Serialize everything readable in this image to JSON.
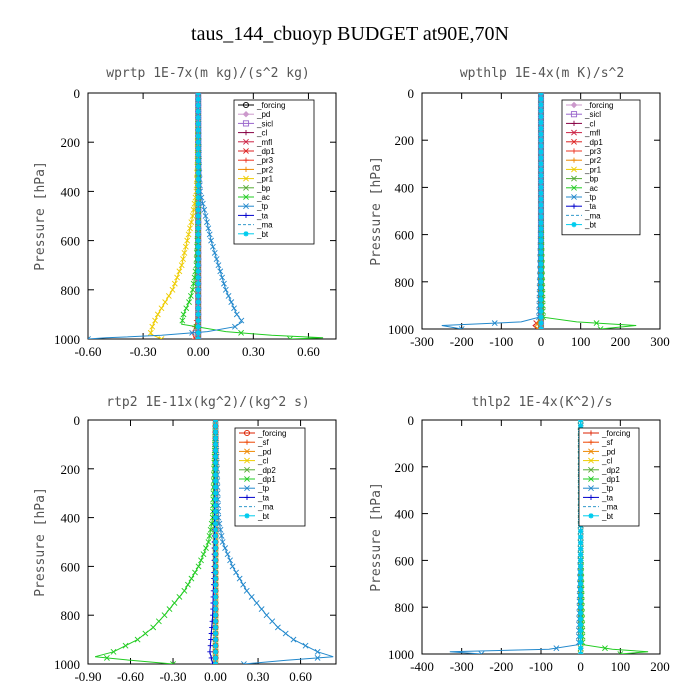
{
  "figure": {
    "title": "taus_144_cbuoyp  BUDGET at90E,70N"
  },
  "chart_data": [
    {
      "type": "line",
      "title": "wprtp  1E-7x(m kg)/(s^2 kg)",
      "ylabel": "Pressure [hPa]",
      "xlim": [
        -0.6,
        0.75
      ],
      "ylim": [
        1000,
        0
      ],
      "xticks": [
        "-0.60",
        "-0.30",
        "0.00",
        "0.30",
        "0.60"
      ],
      "yticks": [
        "0",
        "200",
        "400",
        "600",
        "800",
        "1000"
      ],
      "legend_position": "top-right",
      "series": [
        {
          "name": "_forcing",
          "color": "#000000",
          "marker": "circle",
          "dash": "",
          "y": [
            0,
            500,
            900,
            1000
          ],
          "x": [
            0,
            0,
            0,
            0
          ]
        },
        {
          "name": "_pd",
          "color": "#cc99cc",
          "marker": "diamond",
          "dash": "",
          "y": [
            0,
            500,
            900,
            1000
          ],
          "x": [
            0,
            0,
            0,
            0
          ]
        },
        {
          "name": "_sicl",
          "color": "#9966cc",
          "marker": "square",
          "dash": "",
          "y": [
            0,
            500,
            900,
            1000
          ],
          "x": [
            0,
            0,
            0,
            0
          ]
        },
        {
          "name": "_cl",
          "color": "#880044",
          "marker": "plus",
          "dash": "",
          "y": [
            0,
            500,
            900,
            1000
          ],
          "x": [
            0,
            0,
            0,
            0
          ]
        },
        {
          "name": "_mfl",
          "color": "#cc2244",
          "marker": "x",
          "dash": "",
          "y": [
            0,
            500,
            900,
            1000
          ],
          "x": [
            0,
            0,
            0,
            0
          ]
        },
        {
          "name": "_dp1",
          "color": "#dd2222",
          "marker": "x",
          "dash": "",
          "y": [
            0,
            500,
            900,
            1000
          ],
          "x": [
            0,
            0,
            0,
            0
          ]
        },
        {
          "name": "_pr3",
          "color": "#ee3322",
          "marker": "plus",
          "dash": "",
          "y": [
            0,
            500,
            900,
            980,
            1000
          ],
          "x": [
            0,
            0,
            0,
            -0.03,
            -0.02
          ]
        },
        {
          "name": "_pr2",
          "color": "#ee8800",
          "marker": "plus",
          "dash": "",
          "y": [
            0,
            500,
            900,
            1000
          ],
          "x": [
            0,
            0,
            0,
            0
          ]
        },
        {
          "name": "_pr1",
          "color": "#eecc00",
          "marker": "x",
          "dash": "",
          "y": [
            0,
            300,
            400,
            500,
            600,
            700,
            800,
            850,
            900,
            950,
            980,
            1000
          ],
          "x": [
            0,
            -0.005,
            -0.01,
            -0.03,
            -0.06,
            -0.09,
            -0.14,
            -0.18,
            -0.22,
            -0.25,
            -0.26,
            -0.2
          ]
        },
        {
          "name": "_bp",
          "color": "#55aa33",
          "marker": "x",
          "dash": "",
          "y": [
            0,
            500,
            900,
            1000
          ],
          "x": [
            0,
            0,
            0,
            0
          ]
        },
        {
          "name": "_ac",
          "color": "#22cc22",
          "marker": "x",
          "dash": "",
          "y": [
            0,
            500,
            700,
            800,
            850,
            900,
            940,
            970,
            985,
            995,
            1000
          ],
          "x": [
            0,
            0,
            -0.01,
            -0.03,
            -0.05,
            -0.08,
            -0.09,
            0.15,
            0.4,
            0.68,
            0.5
          ]
        },
        {
          "name": "_tp",
          "color": "#2288cc",
          "marker": "x",
          "dash": "",
          "y": [
            0,
            300,
            400,
            500,
            600,
            700,
            800,
            850,
            900,
            930,
            950,
            970,
            985,
            995,
            1000
          ],
          "x": [
            0,
            0.005,
            0.01,
            0.04,
            0.07,
            0.11,
            0.15,
            0.18,
            0.21,
            0.24,
            0.2,
            0.05,
            -0.2,
            -0.5,
            -0.6
          ]
        },
        {
          "name": "_ta",
          "color": "#0000cc",
          "marker": "plus",
          "dash": "",
          "y": [
            0,
            500,
            900,
            1000
          ],
          "x": [
            0,
            0,
            0,
            0
          ]
        },
        {
          "name": "_ma",
          "color": "#3399cc",
          "marker": "",
          "dash": "5,3",
          "y": [
            0,
            500,
            900,
            1000
          ],
          "x": [
            0,
            0,
            0,
            0
          ]
        },
        {
          "name": "_bt",
          "color": "#00ccee",
          "marker": "star",
          "dash": "",
          "y": [
            0,
            500,
            900,
            1000
          ],
          "x": [
            0,
            0,
            0,
            0
          ]
        }
      ]
    },
    {
      "type": "line",
      "title": "wpthlp  1E-4x(m K)/s^2",
      "ylabel": "Pressure [hPa]",
      "xlim": [
        -300,
        300
      ],
      "ylim": [
        1000,
        0
      ],
      "xticks": [
        "-300",
        "-200",
        "-100",
        "0",
        "100",
        "200",
        "300"
      ],
      "yticks": [
        "0",
        "200",
        "400",
        "600",
        "800",
        "1000"
      ],
      "legend_position": "top-right",
      "series": [
        {
          "name": "_forcing",
          "color": "#cc99cc",
          "marker": "diamond",
          "dash": "",
          "y": [
            0,
            500,
            960,
            1000
          ],
          "x": [
            0,
            0,
            0,
            0
          ]
        },
        {
          "name": "_sicl",
          "color": "#9966cc",
          "marker": "square",
          "dash": "",
          "y": [
            0,
            500,
            960,
            1000
          ],
          "x": [
            0,
            0,
            0,
            0
          ]
        },
        {
          "name": "_cl",
          "color": "#880044",
          "marker": "plus",
          "dash": "",
          "y": [
            0,
            500,
            960,
            1000
          ],
          "x": [
            0,
            0,
            0,
            0
          ]
        },
        {
          "name": "_mfl",
          "color": "#cc2244",
          "marker": "x",
          "dash": "",
          "y": [
            0,
            500,
            960,
            1000
          ],
          "x": [
            0,
            0,
            0,
            0
          ]
        },
        {
          "name": "_dp1",
          "color": "#dd2222",
          "marker": "x",
          "dash": "",
          "y": [
            0,
            500,
            960,
            985,
            1000
          ],
          "x": [
            0,
            0,
            0,
            -20,
            -10
          ]
        },
        {
          "name": "_pr3",
          "color": "#ee3322",
          "marker": "plus",
          "dash": "",
          "y": [
            0,
            500,
            960,
            1000
          ],
          "x": [
            0,
            0,
            0,
            0
          ]
        },
        {
          "name": "_pr2",
          "color": "#ee8800",
          "marker": "plus",
          "dash": "",
          "y": [
            0,
            500,
            960,
            990,
            1000
          ],
          "x": [
            0,
            0,
            0,
            -15,
            -5
          ]
        },
        {
          "name": "_pr1",
          "color": "#eecc00",
          "marker": "x",
          "dash": "",
          "y": [
            0,
            500,
            960,
            1000
          ],
          "x": [
            0,
            0,
            0,
            0
          ]
        },
        {
          "name": "_bp",
          "color": "#55aa33",
          "marker": "x",
          "dash": "",
          "y": [
            0,
            500,
            960,
            1000
          ],
          "x": [
            0,
            0,
            0,
            0
          ]
        },
        {
          "name": "_ac",
          "color": "#22cc22",
          "marker": "x",
          "dash": "",
          "y": [
            0,
            500,
            950,
            970,
            985,
            1000
          ],
          "x": [
            0,
            0,
            5,
            90,
            240,
            150
          ]
        },
        {
          "name": "_tp",
          "color": "#2288cc",
          "marker": "x",
          "dash": "",
          "y": [
            0,
            500,
            950,
            970,
            985,
            1000
          ],
          "x": [
            0,
            0,
            -5,
            -50,
            -250,
            -200
          ]
        },
        {
          "name": "_ta",
          "color": "#0000cc",
          "marker": "plus",
          "dash": "",
          "y": [
            0,
            500,
            960,
            1000
          ],
          "x": [
            0,
            0,
            0,
            0
          ]
        },
        {
          "name": "_ma",
          "color": "#3399cc",
          "marker": "",
          "dash": "5,3",
          "y": [
            0,
            500,
            960,
            1000
          ],
          "x": [
            0,
            0,
            0,
            0
          ]
        },
        {
          "name": "_bt",
          "color": "#00ccee",
          "marker": "star",
          "dash": "",
          "y": [
            0,
            500,
            960,
            1000
          ],
          "x": [
            0,
            0,
            0,
            0
          ]
        }
      ]
    },
    {
      "type": "line",
      "title": "rtp2  1E-11x(kg^2)/(kg^2 s)",
      "ylabel": "Pressure [hPa]",
      "xlim": [
        -0.9,
        0.85
      ],
      "ylim": [
        1000,
        0
      ],
      "xticks": [
        "-0.90",
        "-0.60",
        "-0.30",
        "0.00",
        "0.30",
        "0.60"
      ],
      "yticks": [
        "0",
        "200",
        "400",
        "600",
        "800",
        "1000"
      ],
      "legend_position": "top-right",
      "series": [
        {
          "name": "_forcing",
          "color": "#dd2200",
          "marker": "circle",
          "dash": "",
          "y": [
            0,
            500,
            900,
            1000
          ],
          "x": [
            0,
            0,
            0,
            0
          ]
        },
        {
          "name": "_sf",
          "color": "#ee4400",
          "marker": "plus",
          "dash": "",
          "y": [
            0,
            500,
            900,
            1000
          ],
          "x": [
            0,
            0,
            0,
            0
          ]
        },
        {
          "name": "_pd",
          "color": "#ee8800",
          "marker": "x",
          "dash": "",
          "y": [
            0,
            500,
            900,
            1000
          ],
          "x": [
            0,
            0,
            0,
            0
          ]
        },
        {
          "name": "_cl",
          "color": "#eecc00",
          "marker": "x",
          "dash": "",
          "y": [
            0,
            500,
            900,
            1000
          ],
          "x": [
            0,
            0,
            0,
            0
          ]
        },
        {
          "name": "_dp2",
          "color": "#55aa33",
          "marker": "x",
          "dash": "",
          "y": [
            0,
            500,
            900,
            1000
          ],
          "x": [
            0,
            0,
            0,
            0
          ]
        },
        {
          "name": "_dp1",
          "color": "#22cc22",
          "marker": "x",
          "dash": "",
          "y": [
            0,
            400,
            500,
            600,
            700,
            800,
            850,
            900,
            950,
            970,
            985,
            1000
          ],
          "x": [
            0,
            -0.02,
            -0.05,
            -0.12,
            -0.22,
            -0.36,
            -0.44,
            -0.55,
            -0.72,
            -0.85,
            -0.6,
            -0.3
          ]
        },
        {
          "name": "_tp",
          "color": "#2288cc",
          "marker": "x",
          "dash": "",
          "y": [
            0,
            400,
            500,
            600,
            700,
            800,
            850,
            900,
            950,
            970,
            985,
            1000
          ],
          "x": [
            0,
            0.02,
            0.05,
            0.12,
            0.22,
            0.36,
            0.44,
            0.55,
            0.72,
            0.83,
            0.5,
            0.2
          ]
        },
        {
          "name": "_ta",
          "color": "#0000cc",
          "marker": "plus",
          "dash": "",
          "y": [
            0,
            600,
            800,
            950,
            1000
          ],
          "x": [
            0,
            -0.01,
            -0.02,
            -0.04,
            -0.02
          ]
        },
        {
          "name": "_ma",
          "color": "#3399cc",
          "marker": "",
          "dash": "5,3",
          "y": [
            0,
            500,
            900,
            1000
          ],
          "x": [
            0,
            0,
            0,
            0
          ]
        },
        {
          "name": "_bt",
          "color": "#00ccee",
          "marker": "star",
          "dash": "",
          "y": [
            0,
            500,
            900,
            1000
          ],
          "x": [
            0,
            0,
            0,
            0
          ]
        }
      ]
    },
    {
      "type": "line",
      "title": "thlp2  1E-4x(K^2)/s",
      "ylabel": "Pressure [hPa]",
      "xlim": [
        -400,
        200
      ],
      "ylim": [
        1000,
        0
      ],
      "xticks": [
        "-400",
        "-300",
        "-200",
        "-100",
        "0",
        "100",
        "200"
      ],
      "yticks": [
        "0",
        "200",
        "400",
        "600",
        "800",
        "1000"
      ],
      "legend_position": "top-right",
      "series": [
        {
          "name": "_forcing",
          "color": "#dd2200",
          "marker": "plus",
          "dash": "",
          "y": [
            0,
            500,
            960,
            1000
          ],
          "x": [
            0,
            0,
            0,
            0
          ]
        },
        {
          "name": "_sf",
          "color": "#ee4400",
          "marker": "plus",
          "dash": "",
          "y": [
            0,
            500,
            960,
            1000
          ],
          "x": [
            0,
            0,
            0,
            0
          ]
        },
        {
          "name": "_pd",
          "color": "#ee8800",
          "marker": "x",
          "dash": "",
          "y": [
            0,
            500,
            960,
            1000
          ],
          "x": [
            0,
            0,
            0,
            0
          ]
        },
        {
          "name": "_cl",
          "color": "#eecc00",
          "marker": "x",
          "dash": "",
          "y": [
            0,
            500,
            960,
            1000
          ],
          "x": [
            0,
            0,
            0,
            0
          ]
        },
        {
          "name": "_dp2",
          "color": "#55aa33",
          "marker": "x",
          "dash": "",
          "y": [
            0,
            500,
            960,
            1000
          ],
          "x": [
            0,
            0,
            0,
            0
          ]
        },
        {
          "name": "_dp1",
          "color": "#22cc22",
          "marker": "x",
          "dash": "",
          "y": [
            0,
            500,
            960,
            980,
            990,
            1000
          ],
          "x": [
            0,
            0,
            5,
            80,
            170,
            100
          ]
        },
        {
          "name": "_tp",
          "color": "#2288cc",
          "marker": "x",
          "dash": "",
          "y": [
            0,
            500,
            960,
            980,
            990,
            1000
          ],
          "x": [
            0,
            0,
            -5,
            -80,
            -330,
            -250
          ]
        },
        {
          "name": "_ta",
          "color": "#0000cc",
          "marker": "plus",
          "dash": "",
          "y": [
            0,
            500,
            960,
            1000
          ],
          "x": [
            0,
            0,
            0,
            0
          ]
        },
        {
          "name": "_ma",
          "color": "#3399cc",
          "marker": "",
          "dash": "5,3",
          "y": [
            0,
            500,
            960,
            1000
          ],
          "x": [
            0,
            0,
            0,
            0
          ]
        },
        {
          "name": "_bt",
          "color": "#00ccee",
          "marker": "star",
          "dash": "",
          "y": [
            0,
            500,
            960,
            1000
          ],
          "x": [
            0,
            0,
            0,
            0
          ]
        }
      ]
    }
  ]
}
